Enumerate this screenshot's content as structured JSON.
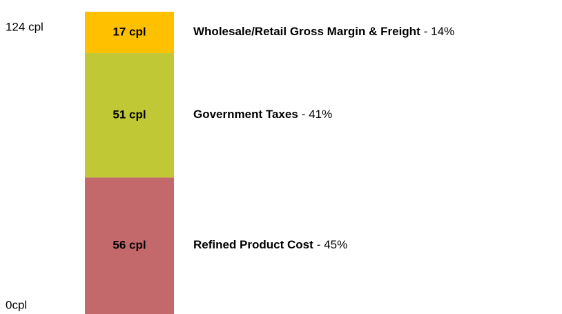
{
  "chart_data": {
    "type": "stacked_bar",
    "ylim": [
      0,
      124
    ],
    "yticks": [
      {
        "value": 0,
        "label": "0cpl"
      },
      {
        "value": 124,
        "label": "124 cpl"
      }
    ],
    "series": [
      {
        "name": "Refined Product Cost",
        "color": "#c4696b",
        "values": [
          56
        ],
        "value_labels": [
          "56 cpl"
        ],
        "share_label": "- 45%"
      },
      {
        "name": "Government Taxes",
        "color": "#c0c836",
        "values": [
          51
        ],
        "value_labels": [
          "51 cpl"
        ],
        "share_label": "- 41%"
      },
      {
        "name": "Wholesale/Retail Gross Margin & Freight",
        "color": "#ffc000",
        "values": [
          17
        ],
        "value_labels": [
          "17 cpl"
        ],
        "share_label": "- 14%"
      }
    ]
  }
}
